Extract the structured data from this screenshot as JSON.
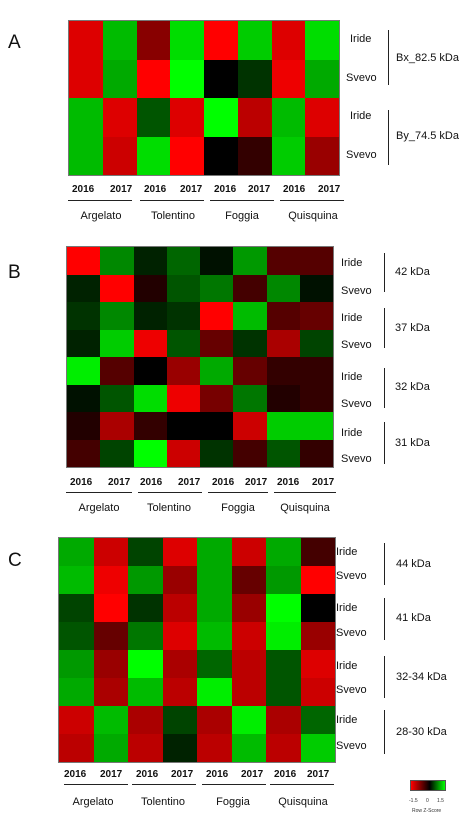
{
  "colors": {
    "low": "#ff0000",
    "mid": "#000000",
    "high": "#00ff00"
  },
  "chart_data": [
    {
      "type": "heatmap",
      "panel": "A",
      "rows": [
        "Iride",
        "Svevo",
        "Iride",
        "Svevo"
      ],
      "groups": [
        "Bx_82.5 kDa",
        "By_74.5 kDa"
      ],
      "years": [
        "2016",
        "2017",
        "2016",
        "2017",
        "2016",
        "2017",
        "2016",
        "2017"
      ],
      "sites": [
        "Argelato",
        "Tolentino",
        "Foggia",
        "Quisquina"
      ],
      "values": [
        [
          -1.3,
          1.1,
          -0.8,
          1.3,
          -1.5,
          1.2,
          -1.3,
          1.3
        ],
        [
          -1.3,
          1.0,
          -1.5,
          1.5,
          0.0,
          0.3,
          -1.4,
          1.0
        ],
        [
          1.1,
          -1.3,
          0.5,
          -1.3,
          1.5,
          -1.1,
          1.1,
          -1.3
        ],
        [
          1.1,
          -1.2,
          1.3,
          -1.5,
          0.0,
          -0.3,
          1.2,
          -0.9
        ]
      ]
    },
    {
      "type": "heatmap",
      "panel": "B",
      "rows": [
        "Iride",
        "Svevo",
        "Iride",
        "Svevo",
        "Iride",
        "Svevo",
        "Iride",
        "Svevo"
      ],
      "groups": [
        "42 kDa",
        "37 kDa",
        "32 kDa",
        "31 kDa"
      ],
      "years": [
        "2016",
        "2017",
        "2016",
        "2017",
        "2016",
        "2017",
        "2016",
        "2017"
      ],
      "sites": [
        "Argelato",
        "Tolentino",
        "Foggia",
        "Quisquina"
      ],
      "values": [
        [
          -1.5,
          0.8,
          0.2,
          0.6,
          0.1,
          0.9,
          -0.5,
          -0.5
        ],
        [
          0.2,
          -1.5,
          -0.2,
          0.5,
          0.7,
          -0.4,
          0.8,
          0.1
        ],
        [
          0.3,
          0.8,
          0.2,
          0.3,
          -1.5,
          1.1,
          -0.5,
          -0.6
        ],
        [
          0.2,
          1.2,
          -1.4,
          0.5,
          -0.6,
          0.3,
          -1.0,
          0.4
        ],
        [
          1.4,
          -0.5,
          0.0,
          -0.9,
          1.0,
          -0.6,
          -0.3,
          -0.3
        ],
        [
          0.1,
          0.5,
          1.3,
          -1.4,
          -0.7,
          0.7,
          -0.2,
          -0.3
        ],
        [
          -0.2,
          -1.0,
          -0.3,
          0.0,
          0.0,
          -1.2,
          1.2,
          1.2
        ],
        [
          -0.4,
          0.4,
          1.5,
          -1.2,
          0.3,
          -0.4,
          0.5,
          -0.3
        ]
      ]
    },
    {
      "type": "heatmap",
      "panel": "C",
      "rows": [
        "Iride",
        "Svevo",
        "Iride",
        "Svevo",
        "Iride",
        "Svevo",
        "Iride",
        "Svevo"
      ],
      "groups": [
        "44 kDa",
        "41 kDa",
        "32-34 kDa",
        "28-30 kDa"
      ],
      "years": [
        "2016",
        "2017",
        "2016",
        "2017",
        "2016",
        "2017",
        "2016",
        "2017"
      ],
      "sites": [
        "Argelato",
        "Tolentino",
        "Foggia",
        "Quisquina"
      ],
      "values": [
        [
          1.0,
          -1.2,
          0.4,
          -1.3,
          1.0,
          -1.2,
          1.0,
          -0.4
        ],
        [
          1.1,
          -1.4,
          0.9,
          -0.9,
          1.0,
          -0.6,
          0.9,
          -1.5
        ],
        [
          0.4,
          -1.5,
          0.3,
          -1.1,
          1.0,
          -0.9,
          1.5,
          0.0
        ],
        [
          0.5,
          -0.6,
          0.7,
          -1.3,
          1.1,
          -1.2,
          1.4,
          -0.9
        ],
        [
          0.9,
          -0.9,
          1.5,
          -1.0,
          0.6,
          -1.1,
          0.5,
          -1.3
        ],
        [
          1.0,
          -1.0,
          1.1,
          -1.1,
          1.4,
          -1.1,
          0.5,
          -1.2
        ],
        [
          -1.2,
          1.1,
          -1.0,
          0.4,
          -1.0,
          1.4,
          -1.0,
          0.6
        ],
        [
          -1.1,
          1.0,
          -1.1,
          0.2,
          -1.1,
          1.1,
          -1.1,
          1.2
        ]
      ]
    }
  ],
  "legend": {
    "title": "Row Z-Score",
    "ticks": [
      "-1.5",
      "0",
      "1.5"
    ]
  }
}
